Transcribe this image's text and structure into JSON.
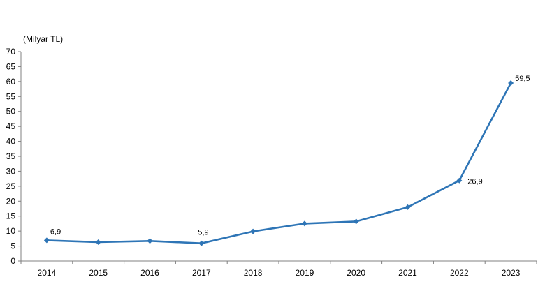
{
  "chart_data": {
    "type": "line",
    "unit_label": "(Milyar TL)",
    "title": "",
    "xlabel": "",
    "ylabel": "",
    "ylim": [
      0,
      70
    ],
    "ytick_step": 5,
    "yticks": [
      "0",
      "5",
      "10",
      "15",
      "20",
      "25",
      "30",
      "35",
      "40",
      "45",
      "50",
      "55",
      "60",
      "65",
      "70"
    ],
    "categories": [
      "2014",
      "2015",
      "2016",
      "2017",
      "2018",
      "2019",
      "2020",
      "2021",
      "2022",
      "2023"
    ],
    "series": [
      {
        "values": [
          6.9,
          6.3,
          6.7,
          5.9,
          9.9,
          12.5,
          13.2,
          18.0,
          26.9,
          59.5
        ],
        "color": "#2e75b6"
      }
    ],
    "data_labels": [
      {
        "index": 0,
        "text": "6,9"
      },
      {
        "index": 3,
        "text": "5,9"
      },
      {
        "index": 8,
        "text": "26,9"
      },
      {
        "index": 9,
        "text": "59,5"
      }
    ],
    "grid": false,
    "legend": "none"
  }
}
